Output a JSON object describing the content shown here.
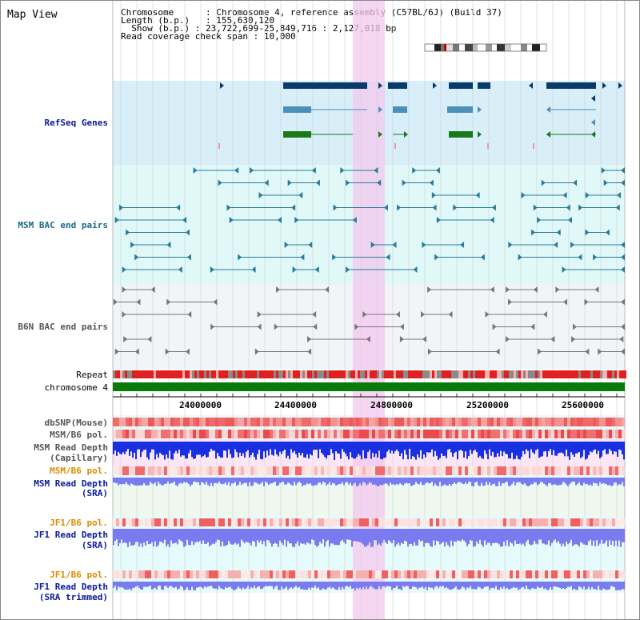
{
  "title": "Map View",
  "info": {
    "chromosome_label": "Chromosome",
    "chromosome_value": "Chromosome 4, reference assembly (C57BL/6J) (Build 37)",
    "length_label": "Length (b.p.)",
    "length_value": "155,630,120",
    "show_label": "Show (b.p.)",
    "show_value": "23,722,699-25,849,716 : 2,127,018 bp",
    "coverage_label": "Read coverage check span",
    "coverage_value": "10,000"
  },
  "tracks": {
    "refseq": "RefSeq Genes",
    "msm_bac": "MSM BAC end pairs",
    "b6n_bac": "B6N BAC end pairs",
    "repeat": "Repeat",
    "chromosome": "chromosome 4",
    "dbsnp": "dbSNP(Mouse)",
    "msm_b6_pol": "MSM/B6 pol.",
    "msm_depth_cap_1": "MSM Read Depth",
    "msm_depth_cap_2": "(Capillary)",
    "msm_b6_pol_2": "MSM/B6 pol.",
    "msm_depth_sra_1": "MSM Read Depth",
    "msm_depth_sra_2": "(SRA)",
    "jf1_b6_pol": "JF1/B6 pol.",
    "jf1_depth_sra_1": "JF1 Read Depth",
    "jf1_depth_sra_2": "(SRA)",
    "jf1_b6_pol_2": "JF1/B6 pol.",
    "jf1_depth_trim_1": "JF1 Read Depth",
    "jf1_depth_trim_2": "(SRA trimmed)"
  },
  "axis_ticks": [
    "24000000",
    "24400000",
    "24800000",
    "25200000",
    "25600000"
  ],
  "colors": {
    "refseq_bg": "#d8eef8",
    "bac_bg": "#e0f8f8",
    "b6n_bg": "#f2f4f8",
    "highlight": "#f4c8f0",
    "gene_dark": "#0a3a6a",
    "gene_mid": "#4a90b8",
    "gene_green": "#1a7a1a",
    "bac_teal": "#2a7a9a",
    "b6n_grey": "#777777",
    "chrom_green": "#0a7a0a",
    "label_blue": "#0a1a9a",
    "label_teal": "#1a6a8a",
    "label_grey": "#555555",
    "label_orange": "#e08a00"
  }
}
